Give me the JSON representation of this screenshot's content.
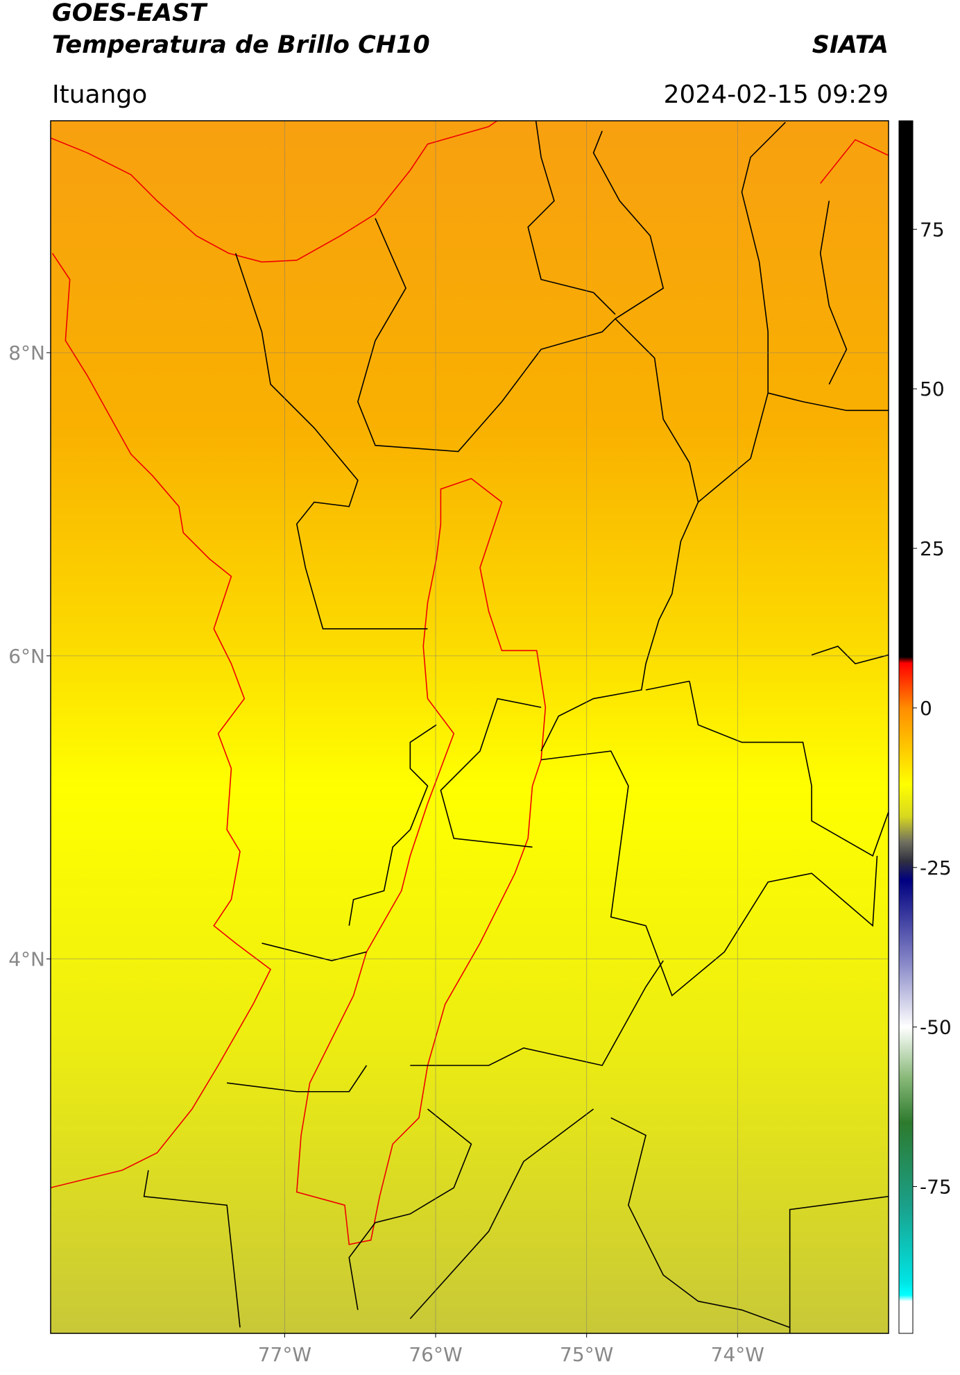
{
  "header": {
    "title": "GOES-EAST",
    "subtitle": "Temperatura de Brillo CH10",
    "source": "SIATA",
    "place": "Ituango",
    "datetime": "2024-02-15 09:29"
  },
  "map": {
    "lat_range": [
      1.53,
      9.53
    ],
    "lon_range": [
      -78.55,
      -73.0
    ],
    "lat_ticks": [
      {
        "value": 8,
        "label": "8°N"
      },
      {
        "value": 6,
        "label": "6°N"
      },
      {
        "value": 4,
        "label": "4°N"
      }
    ],
    "lon_ticks": [
      {
        "value": -77,
        "label": "77°W"
      },
      {
        "value": -76,
        "label": "76°W"
      },
      {
        "value": -75,
        "label": "75°W"
      },
      {
        "value": -74,
        "label": "74°W"
      }
    ],
    "grid": true
  },
  "colorbar": {
    "range": [
      -98,
      92
    ],
    "ticks": [
      75,
      50,
      25,
      0,
      -25,
      -50,
      -75
    ],
    "stops": [
      {
        "value": 92,
        "color": "#000000"
      },
      {
        "value": 8,
        "color": "#000000"
      },
      {
        "value": 7,
        "color": "#ff0000"
      },
      {
        "value": 0,
        "color": "#ff8c00"
      },
      {
        "value": -12,
        "color": "#ffff00"
      },
      {
        "value": -17,
        "color": "#d8d820"
      },
      {
        "value": -21,
        "color": "#707060"
      },
      {
        "value": -24,
        "color": "#303040"
      },
      {
        "value": -27,
        "color": "#000080"
      },
      {
        "value": -40,
        "color": "#8888c8"
      },
      {
        "value": -50,
        "color": "#ffffff"
      },
      {
        "value": -58,
        "color": "#88b878"
      },
      {
        "value": -65,
        "color": "#2d7a2d"
      },
      {
        "value": -78,
        "color": "#1aa08a"
      },
      {
        "value": -90,
        "color": "#00e5e5"
      },
      {
        "value": -92,
        "color": "#00ffff"
      },
      {
        "value": -93,
        "color": "#ffffff"
      },
      {
        "value": -98,
        "color": "#ffffff"
      }
    ]
  }
}
